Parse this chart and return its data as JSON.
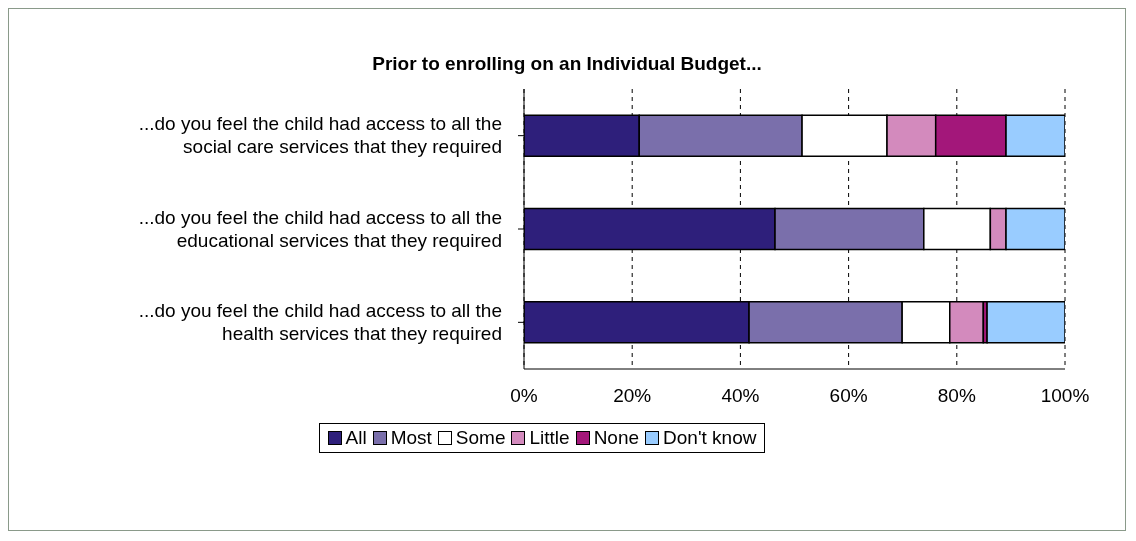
{
  "chart_data": {
    "type": "bar",
    "orientation": "horizontal",
    "stacked": true,
    "title": "Prior to enrolling on an Individual Budget...",
    "categories": [
      "...do you feel the child had access to all the social care services that they required",
      "...do you feel the child had access to all the educational services that they required",
      "...do you feel the child had access to all the health services that they required"
    ],
    "series": [
      {
        "name": "All",
        "color": "#2e1f7b",
        "values": [
          21.3,
          46.4,
          41.6
        ]
      },
      {
        "name": "Most",
        "color": "#7a6fab",
        "values": [
          30.1,
          27.5,
          28.3
        ]
      },
      {
        "name": "Some",
        "color": "#ffffff",
        "values": [
          15.7,
          12.3,
          8.8
        ]
      },
      {
        "name": "Little",
        "color": "#d38abd",
        "values": [
          9.0,
          2.9,
          6.2
        ]
      },
      {
        "name": "None",
        "color": "#a3177a",
        "values": [
          13.0,
          0,
          0.7
        ]
      },
      {
        "name": "Don't know",
        "color": "#99ccff",
        "values": [
          10.9,
          10.9,
          14.4
        ]
      }
    ],
    "xlim": [
      0,
      100
    ],
    "xticks": [
      {
        "value": 0,
        "label": "0%"
      },
      {
        "value": 20,
        "label": "20%"
      },
      {
        "value": 40,
        "label": "40%"
      },
      {
        "value": 60,
        "label": "60%"
      },
      {
        "value": 80,
        "label": "80%"
      },
      {
        "value": 100,
        "label": "100%"
      }
    ],
    "grid": "x",
    "legend": "bottom"
  }
}
